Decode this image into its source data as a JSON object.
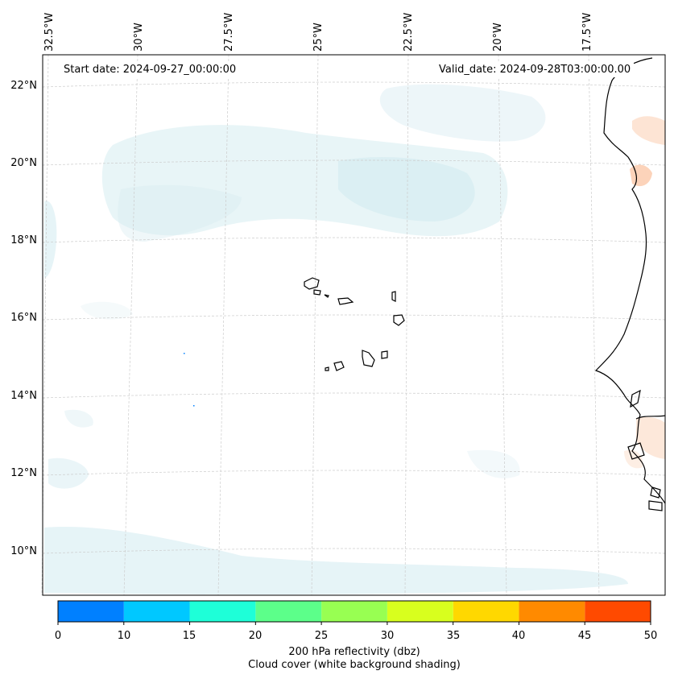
{
  "map": {
    "start_date": "Start date: 2024-09-27_00:00:00",
    "valid_date": "Valid_date: 2024-09-28T03:00:00.00",
    "lat_labels": [
      "22°N",
      "20°N",
      "18°N",
      "16°N",
      "14°N",
      "12°N",
      "10°N"
    ],
    "lon_labels": [
      "32.5°W",
      "30°W",
      "27.5°W",
      "25°W",
      "22.5°W",
      "20°W",
      "17.5°W"
    ],
    "coastline_color": "#000000",
    "cloud_color": "#d6ecf1",
    "graticule_color": "#cccccc"
  },
  "colorbar": {
    "ticks": [
      "0",
      "10",
      "15",
      "20",
      "25",
      "30",
      "35",
      "40",
      "45",
      "50"
    ],
    "colors": [
      "#0080ff",
      "#00c8ff",
      "#1effd8",
      "#5cff8a",
      "#98ff52",
      "#d8ff1e",
      "#ffd800",
      "#ff8a00",
      "#ff4a00"
    ],
    "label_line1": "200 hPa reflectivity (dbz)",
    "label_line2": "Cloud cover (white background shading)"
  }
}
